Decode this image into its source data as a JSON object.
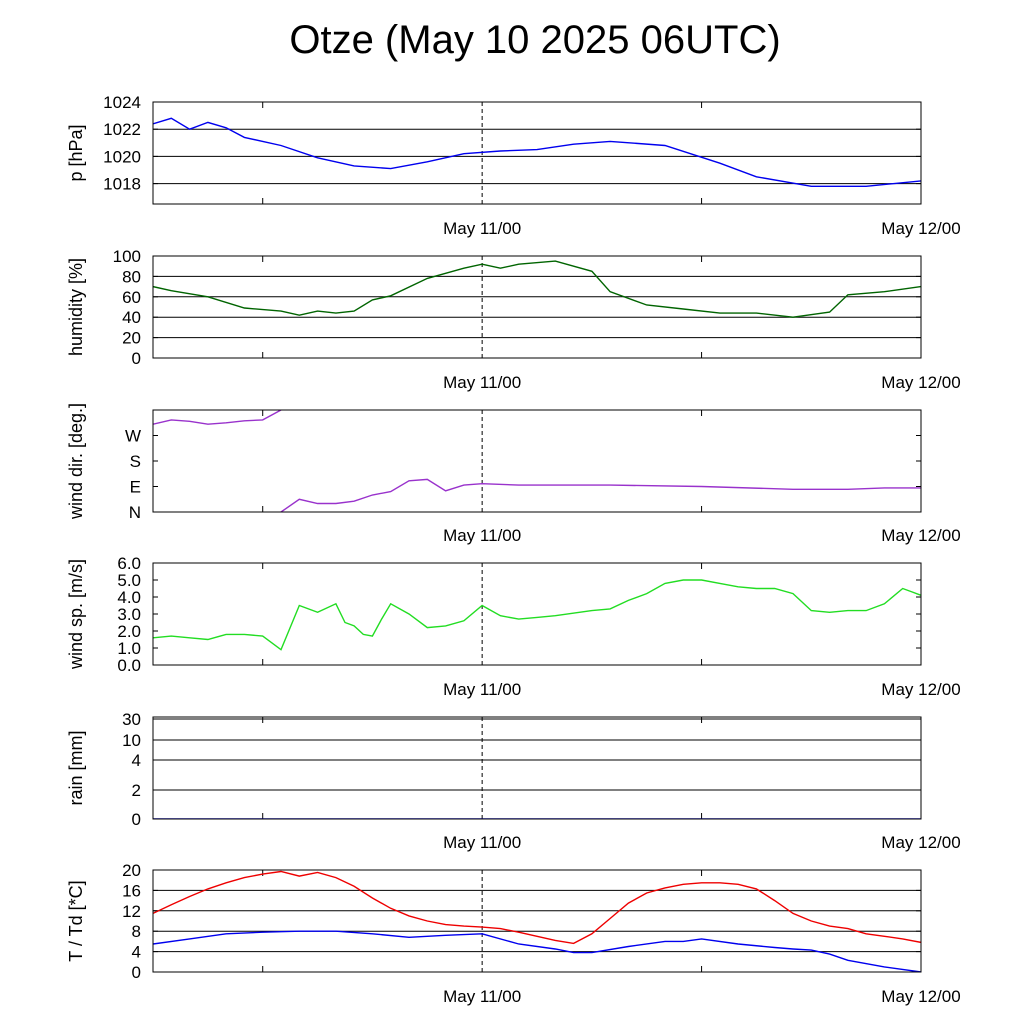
{
  "title": "Otze (May 10 2025 06UTC)",
  "x_tick_labels": [
    "May 11/00",
    "May 12/00"
  ],
  "chart_data": [
    {
      "type": "line",
      "ylabel": "p [hPa]",
      "ylim": [
        1016.5,
        1024
      ],
      "yticks": [
        1018,
        1020,
        1022,
        1024
      ],
      "ytick_labels": [
        "1018",
        "1020",
        "1022",
        "1024"
      ],
      "grid": true,
      "color": "#0000ee",
      "x_hours": [
        0,
        1,
        2,
        3,
        4,
        5,
        7,
        9,
        11,
        13,
        15,
        17,
        19,
        21,
        23,
        25,
        28,
        31,
        33,
        36,
        39,
        42
      ],
      "values": [
        1022.4,
        1022.8,
        1022.0,
        1022.5,
        1022.1,
        1021.4,
        1020.8,
        1019.9,
        1019.3,
        1019.1,
        1019.6,
        1020.2,
        1020.4,
        1020.5,
        1020.9,
        1021.1,
        1020.8,
        1019.5,
        1018.5,
        1017.8,
        1017.8,
        1018.2
      ]
    },
    {
      "type": "line",
      "ylabel": "humidity [%]",
      "ylim": [
        0,
        100
      ],
      "yticks": [
        0,
        20,
        40,
        60,
        80,
        100
      ],
      "ytick_labels": [
        "0",
        "20",
        "40",
        "60",
        "80",
        "100"
      ],
      "grid": true,
      "color": "#006400",
      "x_hours": [
        0,
        1,
        3,
        5,
        7,
        8,
        9,
        10,
        11,
        12,
        13,
        15,
        17,
        18,
        19,
        20,
        22,
        24,
        25,
        27,
        29,
        31,
        33,
        35,
        37,
        38,
        40,
        42
      ],
      "values": [
        70,
        66,
        60,
        49,
        46,
        42,
        46,
        44,
        46,
        57,
        61,
        78,
        88,
        92,
        88,
        92,
        95,
        85,
        65,
        52,
        48,
        44,
        44,
        40,
        45,
        62,
        65,
        70
      ]
    },
    {
      "type": "line",
      "ylabel": "wind dir. [deg.]",
      "ylim": [
        0,
        360
      ],
      "yticks": [
        0,
        90,
        180,
        270
      ],
      "ytick_labels": [
        "N",
        "E",
        "S",
        "W"
      ],
      "grid": false,
      "color": "#9932cc",
      "segments": [
        {
          "x_hours": [
            0,
            1,
            2,
            3,
            4,
            5,
            6,
            7
          ],
          "values": [
            310,
            325,
            320,
            310,
            315,
            322,
            325,
            360
          ]
        },
        {
          "x_hours": [
            7,
            8,
            9,
            10,
            11,
            12,
            13,
            14,
            15,
            16,
            17,
            18,
            20,
            25,
            30,
            35,
            38,
            40,
            42
          ],
          "values": [
            0,
            45,
            30,
            30,
            38,
            60,
            72,
            110,
            115,
            75,
            95,
            100,
            95,
            95,
            90,
            80,
            80,
            85,
            85
          ]
        }
      ]
    },
    {
      "type": "line",
      "ylabel": "wind sp. [m/s]",
      "ylim": [
        0,
        6
      ],
      "yticks": [
        0,
        1,
        2,
        3,
        4,
        5,
        6
      ],
      "ytick_labels": [
        "0.0",
        "1.0",
        "2.0",
        "3.0",
        "4.0",
        "5.0",
        "6.0"
      ],
      "grid": false,
      "color": "#22dd22",
      "x_hours": [
        0,
        1,
        2,
        3,
        4,
        5,
        6,
        7,
        8,
        9,
        10,
        10.5,
        11,
        11.5,
        12,
        12.5,
        13,
        14,
        15,
        16,
        17,
        18,
        19,
        20,
        21,
        22,
        24,
        25,
        26,
        27,
        28,
        29,
        30,
        31,
        32,
        33,
        34,
        35,
        36,
        37,
        38,
        39,
        40,
        41,
        41.5,
        42
      ],
      "values": [
        1.6,
        1.7,
        1.6,
        1.5,
        1.8,
        1.8,
        1.7,
        0.9,
        3.5,
        3.1,
        3.6,
        2.5,
        2.3,
        1.8,
        1.7,
        2.7,
        3.6,
        3.0,
        2.2,
        2.3,
        2.6,
        3.5,
        2.9,
        2.7,
        2.8,
        2.9,
        3.2,
        3.3,
        3.8,
        4.2,
        4.8,
        5.0,
        5.0,
        4.8,
        4.6,
        4.5,
        4.5,
        4.2,
        3.2,
        3.1,
        3.2,
        3.2,
        3.6,
        4.5,
        4.3,
        4.1
      ]
    },
    {
      "type": "line",
      "ylabel": "rain [mm]",
      "ylim": [
        0,
        30
      ],
      "yticks": [
        0,
        2,
        4,
        10,
        30
      ],
      "ytick_labels": [
        "0",
        "2",
        "4",
        "10",
        "30"
      ],
      "grid": true,
      "color": "#0000ee",
      "x_hours": [
        0,
        42
      ],
      "values": [
        0,
        0
      ]
    },
    {
      "type": "line",
      "ylabel": "T / Td [*C]",
      "ylim": [
        0,
        20
      ],
      "yticks": [
        0,
        4,
        8,
        12,
        16,
        20
      ],
      "ytick_labels": [
        "0",
        "4",
        "8",
        "12",
        "16",
        "20"
      ],
      "grid": true,
      "series_list": [
        {
          "color": "#ee0000",
          "x_hours": [
            0,
            1,
            2,
            3,
            4,
            5,
            6,
            7,
            8,
            9,
            10,
            11,
            12,
            13,
            14,
            15,
            16,
            17,
            18,
            19,
            20,
            21,
            22,
            23,
            24,
            25,
            26,
            27,
            28,
            29,
            30,
            31,
            32,
            33,
            34,
            35,
            36,
            37,
            38,
            39,
            40,
            41,
            42
          ],
          "values": [
            11.5,
            13.2,
            14.8,
            16.3,
            17.5,
            18.5,
            19.2,
            19.7,
            18.8,
            19.5,
            18.5,
            16.8,
            14.5,
            12.5,
            11.0,
            10.0,
            9.3,
            9.0,
            8.8,
            8.5,
            7.8,
            7.0,
            6.2,
            5.6,
            7.5,
            10.5,
            13.5,
            15.5,
            16.5,
            17.2,
            17.5,
            17.5,
            17.2,
            16.3,
            14.0,
            11.5,
            10.0,
            9.0,
            8.5,
            7.5,
            7.0,
            6.5,
            5.8
          ]
        },
        {
          "color": "#0000ee",
          "x_hours": [
            0,
            2,
            4,
            6,
            8,
            10,
            12,
            14,
            16,
            18,
            20,
            22,
            23,
            24,
            26,
            28,
            29,
            30,
            32,
            34,
            35,
            36,
            37,
            38,
            40,
            42
          ],
          "values": [
            5.5,
            6.5,
            7.5,
            7.8,
            8.0,
            8.0,
            7.5,
            6.8,
            7.2,
            7.5,
            5.5,
            4.5,
            3.8,
            3.8,
            5.0,
            6.0,
            6.0,
            6.5,
            5.5,
            4.8,
            4.5,
            4.3,
            3.5,
            2.3,
            1.0,
            0.0
          ]
        }
      ]
    }
  ]
}
